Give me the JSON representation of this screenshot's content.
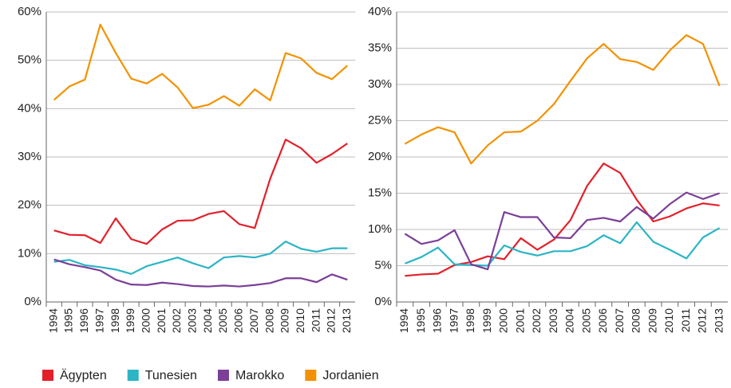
{
  "chart_data": [
    {
      "type": "line",
      "categories": [
        "1994",
        "1995",
        "1996",
        "1997",
        "1998",
        "1999",
        "2000",
        "2001",
        "2002",
        "2003",
        "2004",
        "2005",
        "2006",
        "2007",
        "2008",
        "2009",
        "2010",
        "2011",
        "2012",
        "2013"
      ],
      "ylim": [
        0,
        60
      ],
      "yticks": [
        {
          "value": 0,
          "label": "0%"
        },
        {
          "value": 10,
          "label": "10%"
        },
        {
          "value": 20,
          "label": "20%"
        },
        {
          "value": 30,
          "label": "30%"
        },
        {
          "value": 40,
          "label": "40%"
        },
        {
          "value": 50,
          "label": "50%"
        },
        {
          "value": 60,
          "label": "60%"
        }
      ],
      "grid": true,
      "series": [
        {
          "name": "Ägypten",
          "color": "#e3202a",
          "values": [
            14.8,
            13.9,
            13.8,
            12.2,
            17.3,
            13.0,
            12.0,
            15.0,
            16.8,
            16.9,
            18.2,
            18.8,
            16.1,
            15.3,
            25.5,
            33.6,
            31.8,
            28.8,
            30.6,
            32.8
          ]
        },
        {
          "name": "Tunesien",
          "color": "#2bb5c5",
          "values": [
            8.3,
            8.7,
            7.6,
            7.2,
            6.7,
            5.8,
            7.4,
            8.3,
            9.2,
            8.0,
            7.0,
            9.2,
            9.5,
            9.2,
            10.0,
            12.5,
            11.0,
            10.4,
            11.1,
            11.1
          ]
        },
        {
          "name": "Marokko",
          "color": "#7b3f97",
          "values": [
            8.8,
            7.8,
            7.2,
            6.5,
            4.6,
            3.6,
            3.5,
            4.0,
            3.7,
            3.3,
            3.2,
            3.4,
            3.2,
            3.5,
            3.9,
            4.9,
            4.9,
            4.1,
            5.7,
            4.6
          ]
        },
        {
          "name": "Jordanien",
          "color": "#f39200",
          "values": [
            41.8,
            44.6,
            46.0,
            57.4,
            51.5,
            46.2,
            45.2,
            47.2,
            44.4,
            40.1,
            40.8,
            42.6,
            40.6,
            44.0,
            41.7,
            51.5,
            50.4,
            47.4,
            46.1,
            48.9
          ]
        }
      ]
    },
    {
      "type": "line",
      "categories": [
        "1994",
        "1995",
        "1996",
        "1997",
        "1998",
        "1999",
        "2000",
        "2001",
        "2002",
        "2003",
        "2004",
        "2005",
        "2006",
        "2007",
        "2008",
        "2009",
        "2010",
        "2011",
        "2012",
        "2013"
      ],
      "ylim": [
        0,
        40
      ],
      "yticks": [
        {
          "value": 0,
          "label": "0%"
        },
        {
          "value": 5,
          "label": "5%"
        },
        {
          "value": 10,
          "label": "10%"
        },
        {
          "value": 15,
          "label": "15%"
        },
        {
          "value": 20,
          "label": "20%"
        },
        {
          "value": 25,
          "label": "25%"
        },
        {
          "value": 30,
          "label": "30%"
        },
        {
          "value": 35,
          "label": "35%"
        },
        {
          "value": 40,
          "label": "40%"
        }
      ],
      "grid": true,
      "series": [
        {
          "color": "#e3202a",
          "values": [
            3.6,
            3.8,
            3.9,
            5.1,
            5.5,
            6.3,
            5.9,
            8.8,
            7.2,
            8.6,
            11.3,
            16.0,
            19.1,
            17.8,
            14.1,
            11.1,
            11.8,
            12.9,
            13.6,
            13.3
          ]
        },
        {
          "color": "#2bb5c5",
          "values": [
            5.3,
            6.2,
            7.5,
            5.2,
            5.1,
            5.0,
            7.8,
            6.9,
            6.4,
            7.0,
            7.0,
            7.7,
            9.2,
            8.1,
            11.0,
            8.3,
            7.2,
            6.0,
            8.9,
            10.2
          ]
        },
        {
          "color": "#7b3f97",
          "values": [
            9.4,
            8.0,
            8.5,
            9.9,
            5.2,
            4.5,
            12.4,
            11.7,
            11.7,
            8.9,
            8.8,
            11.3,
            11.6,
            11.1,
            13.1,
            11.5,
            13.5,
            15.1,
            14.2,
            15.0
          ]
        },
        {
          "color": "#f39200",
          "values": [
            21.8,
            23.1,
            24.1,
            23.4,
            19.1,
            21.6,
            23.4,
            23.5,
            25.0,
            27.3,
            30.5,
            33.6,
            35.6,
            33.5,
            33.1,
            32.0,
            34.7,
            36.8,
            35.6,
            29.8
          ]
        }
      ]
    }
  ]
}
